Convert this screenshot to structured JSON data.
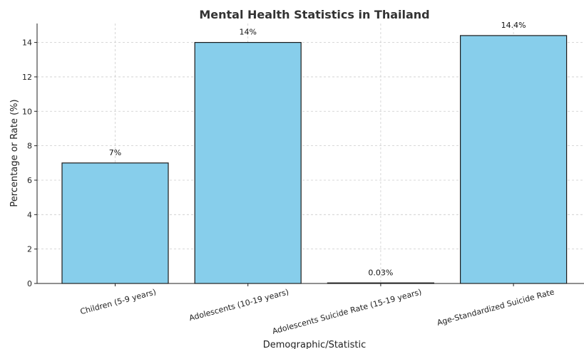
{
  "chart_data": {
    "type": "bar",
    "title": "Mental Health Statistics in Thailand",
    "xlabel": "Demographic/Statistic",
    "ylabel": "Percentage or Rate (%)",
    "categories": [
      "Children (5-9 years)",
      "Adolescents (10-19 years)",
      "Adolescents Suicide Rate (15-19 years)",
      "Age-Standardized Suicide Rate"
    ],
    "values": [
      7,
      14,
      0.03,
      14.4
    ],
    "data_labels": [
      "7%",
      "14%",
      "0.03%",
      "14.4%"
    ],
    "ylim": [
      0,
      15.1
    ],
    "yticks": [
      0,
      2,
      4,
      6,
      8,
      10,
      12,
      14
    ],
    "grid": true,
    "bar_color": "#87CEEB",
    "edge_color": "#1a1a1a"
  }
}
